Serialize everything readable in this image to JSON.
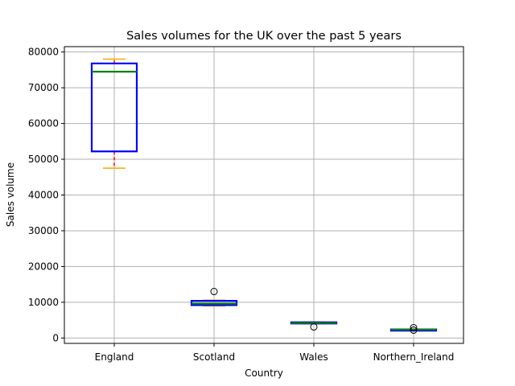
{
  "chart_data": {
    "type": "box",
    "title": "Sales volumes for the UK over the past 5 years",
    "xlabel": "Country",
    "ylabel": "Sales volume",
    "categories": [
      "England",
      "Scotland",
      "Wales",
      "Northern_Ireland"
    ],
    "ylim": [
      -1500,
      81500
    ],
    "yticks": [
      0,
      10000,
      20000,
      30000,
      40000,
      50000,
      60000,
      70000,
      80000
    ],
    "grid": true,
    "boxes": [
      {
        "category": "England",
        "whisker_low": 47500,
        "q1": 52200,
        "median": 74500,
        "q3": 76800,
        "whisker_high": 78000,
        "outliers": []
      },
      {
        "category": "Scotland",
        "whisker_low": 9000,
        "q1": 9200,
        "median": 9600,
        "q3": 10400,
        "whisker_high": 10600,
        "outliers": [
          13000
        ]
      },
      {
        "category": "Wales",
        "whisker_low": 4000,
        "q1": 4100,
        "median": 4200,
        "q3": 4400,
        "whisker_high": 4500,
        "outliers": [
          3100
        ]
      },
      {
        "category": "Northern_Ireland",
        "whisker_low": 2300,
        "q1": 2300,
        "median": 2350,
        "q3": 2400,
        "whisker_high": 2400,
        "outliers": [
          2900,
          2200
        ]
      }
    ],
    "colors": {
      "box": "#0000ff",
      "whisker": "#ff0000",
      "cap": "#ffa500",
      "median": "#008000",
      "flier": "#000000",
      "grid": "#b0b0b0"
    }
  }
}
